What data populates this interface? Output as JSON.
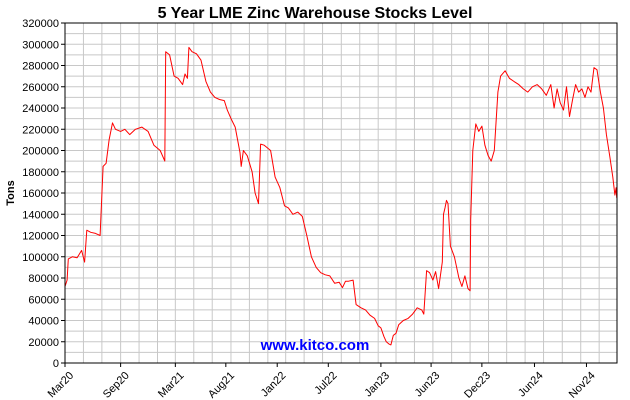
{
  "colors": {
    "series": "#ff0000",
    "grid": "#c8c8c8",
    "watermark": "#0000ff",
    "axis": "#000000"
  },
  "watermark": "www.kitco.com",
  "chart_data": {
    "type": "line",
    "title": "5 Year LME Zinc Warehouse Stocks Level",
    "ylabel": "Tons",
    "xlabel": "",
    "ylim": [
      0,
      320000
    ],
    "yticks": [
      0,
      20000,
      40000,
      60000,
      80000,
      100000,
      120000,
      140000,
      160000,
      180000,
      200000,
      220000,
      240000,
      260000,
      280000,
      300000,
      320000
    ],
    "xlim": [
      "2020-03-01",
      "2025-03-01"
    ],
    "xticks": [
      {
        "label": "Mar20",
        "date": "2020-03-01"
      },
      {
        "label": "Sep20",
        "date": "2020-09-01"
      },
      {
        "label": "Mar21",
        "date": "2021-03-01"
      },
      {
        "label": "Aug21",
        "date": "2021-08-15"
      },
      {
        "label": "Jan22",
        "date": "2022-02-01"
      },
      {
        "label": "Jul22",
        "date": "2022-07-20"
      },
      {
        "label": "Jan23",
        "date": "2023-01-10"
      },
      {
        "label": "Jun23",
        "date": "2023-06-25"
      },
      {
        "label": "Dec23",
        "date": "2023-12-10"
      },
      {
        "label": "Jun24",
        "date": "2024-06-01"
      },
      {
        "label": "Nov24",
        "date": "2024-11-20"
      }
    ],
    "grid": true,
    "legend": "none",
    "series": [
      {
        "points": [
          [
            "2020-03-01",
            72000
          ],
          [
            "2020-03-08",
            78000
          ],
          [
            "2020-03-12",
            98000
          ],
          [
            "2020-03-25",
            100000
          ],
          [
            "2020-04-10",
            99000
          ],
          [
            "2020-04-25",
            106000
          ],
          [
            "2020-05-05",
            95000
          ],
          [
            "2020-05-12",
            125000
          ],
          [
            "2020-05-25",
            123000
          ],
          [
            "2020-06-10",
            122000
          ],
          [
            "2020-06-25",
            120000
          ],
          [
            "2020-07-05",
            185000
          ],
          [
            "2020-07-15",
            188000
          ],
          [
            "2020-07-25",
            210000
          ],
          [
            "2020-08-05",
            226000
          ],
          [
            "2020-08-15",
            220000
          ],
          [
            "2020-09-01",
            218000
          ],
          [
            "2020-09-15",
            220000
          ],
          [
            "2020-10-01",
            215000
          ],
          [
            "2020-10-20",
            220000
          ],
          [
            "2020-11-10",
            222000
          ],
          [
            "2020-12-01",
            218000
          ],
          [
            "2020-12-20",
            205000
          ],
          [
            "2021-01-10",
            200000
          ],
          [
            "2021-01-25",
            190000
          ],
          [
            "2021-01-28",
            293000
          ],
          [
            "2021-02-10",
            290000
          ],
          [
            "2021-02-25",
            270000
          ],
          [
            "2021-03-10",
            268000
          ],
          [
            "2021-03-25",
            262000
          ],
          [
            "2021-04-02",
            272000
          ],
          [
            "2021-04-10",
            268000
          ],
          [
            "2021-04-15",
            297000
          ],
          [
            "2021-04-25",
            293000
          ],
          [
            "2021-05-10",
            291000
          ],
          [
            "2021-05-25",
            285000
          ],
          [
            "2021-06-10",
            265000
          ],
          [
            "2021-06-25",
            255000
          ],
          [
            "2021-07-10",
            250000
          ],
          [
            "2021-07-25",
            248000
          ],
          [
            "2021-08-10",
            247000
          ],
          [
            "2021-08-20",
            238000
          ],
          [
            "2021-09-01",
            230000
          ],
          [
            "2021-09-15",
            222000
          ],
          [
            "2021-10-01",
            198000
          ],
          [
            "2021-10-05",
            185000
          ],
          [
            "2021-10-12",
            200000
          ],
          [
            "2021-10-25",
            195000
          ],
          [
            "2021-11-10",
            180000
          ],
          [
            "2021-11-20",
            160000
          ],
          [
            "2021-12-01",
            150000
          ],
          [
            "2021-12-08",
            206000
          ],
          [
            "2021-12-20",
            205000
          ],
          [
            "2022-01-10",
            200000
          ],
          [
            "2022-01-25",
            175000
          ],
          [
            "2022-02-10",
            165000
          ],
          [
            "2022-02-25",
            148000
          ],
          [
            "2022-03-10",
            146000
          ],
          [
            "2022-03-25",
            140000
          ],
          [
            "2022-04-10",
            142000
          ],
          [
            "2022-04-25",
            138000
          ],
          [
            "2022-05-10",
            120000
          ],
          [
            "2022-05-25",
            100000
          ],
          [
            "2022-06-10",
            90000
          ],
          [
            "2022-06-25",
            85000
          ],
          [
            "2022-07-10",
            83000
          ],
          [
            "2022-07-25",
            82000
          ],
          [
            "2022-08-10",
            75000
          ],
          [
            "2022-08-25",
            76000
          ],
          [
            "2022-09-05",
            71000
          ],
          [
            "2022-09-15",
            77000
          ],
          [
            "2022-09-25",
            77000
          ],
          [
            "2022-10-10",
            78000
          ],
          [
            "2022-10-20",
            55000
          ],
          [
            "2022-11-05",
            52000
          ],
          [
            "2022-11-20",
            50000
          ],
          [
            "2022-12-05",
            45000
          ],
          [
            "2022-12-20",
            42000
          ],
          [
            "2023-01-01",
            35000
          ],
          [
            "2023-01-10",
            33000
          ],
          [
            "2023-01-20",
            25000
          ],
          [
            "2023-01-28",
            20000
          ],
          [
            "2023-02-05",
            18000
          ],
          [
            "2023-02-12",
            17000
          ],
          [
            "2023-02-20",
            26000
          ],
          [
            "2023-03-01",
            28000
          ],
          [
            "2023-03-10",
            36000
          ],
          [
            "2023-03-25",
            40000
          ],
          [
            "2023-04-10",
            42000
          ],
          [
            "2023-04-25",
            46000
          ],
          [
            "2023-05-10",
            52000
          ],
          [
            "2023-05-25",
            50000
          ],
          [
            "2023-06-01",
            46000
          ],
          [
            "2023-06-10",
            87000
          ],
          [
            "2023-06-20",
            85000
          ],
          [
            "2023-07-01",
            78000
          ],
          [
            "2023-07-10",
            86000
          ],
          [
            "2023-07-20",
            70000
          ],
          [
            "2023-08-01",
            95000
          ],
          [
            "2023-08-05",
            140000
          ],
          [
            "2023-08-10",
            146000
          ],
          [
            "2023-08-15",
            153000
          ],
          [
            "2023-08-20",
            150000
          ],
          [
            "2023-08-28",
            110000
          ],
          [
            "2023-09-10",
            100000
          ],
          [
            "2023-09-25",
            80000
          ],
          [
            "2023-10-05",
            72000
          ],
          [
            "2023-10-15",
            82000
          ],
          [
            "2023-10-25",
            70000
          ],
          [
            "2023-11-01",
            68000
          ],
          [
            "2023-11-03",
            135000
          ],
          [
            "2023-11-10",
            200000
          ],
          [
            "2023-11-20",
            225000
          ],
          [
            "2023-11-30",
            218000
          ],
          [
            "2023-12-10",
            223000
          ],
          [
            "2023-12-20",
            205000
          ],
          [
            "2023-12-31",
            195000
          ],
          [
            "2024-01-10",
            190000
          ],
          [
            "2024-01-20",
            200000
          ],
          [
            "2024-02-01",
            255000
          ],
          [
            "2024-02-10",
            270000
          ],
          [
            "2024-02-25",
            275000
          ],
          [
            "2024-03-10",
            268000
          ],
          [
            "2024-03-25",
            265000
          ],
          [
            "2024-04-10",
            262000
          ],
          [
            "2024-04-25",
            258000
          ],
          [
            "2024-05-10",
            255000
          ],
          [
            "2024-05-25",
            260000
          ],
          [
            "2024-06-10",
            262000
          ],
          [
            "2024-06-25",
            258000
          ],
          [
            "2024-07-10",
            252000
          ],
          [
            "2024-07-25",
            262000
          ],
          [
            "2024-08-05",
            240000
          ],
          [
            "2024-08-15",
            258000
          ],
          [
            "2024-08-25",
            245000
          ],
          [
            "2024-09-05",
            238000
          ],
          [
            "2024-09-15",
            260000
          ],
          [
            "2024-09-25",
            232000
          ],
          [
            "2024-10-05",
            248000
          ],
          [
            "2024-10-15",
            262000
          ],
          [
            "2024-10-25",
            255000
          ],
          [
            "2024-11-05",
            258000
          ],
          [
            "2024-11-15",
            250000
          ],
          [
            "2024-11-25",
            260000
          ],
          [
            "2024-12-05",
            255000
          ],
          [
            "2024-12-15",
            278000
          ],
          [
            "2024-12-25",
            276000
          ],
          [
            "2025-01-05",
            255000
          ],
          [
            "2025-01-15",
            240000
          ],
          [
            "2025-01-25",
            215000
          ],
          [
            "2025-02-05",
            195000
          ],
          [
            "2025-02-15",
            175000
          ],
          [
            "2025-02-22",
            158000
          ],
          [
            "2025-02-26",
            165000
          ],
          [
            "2025-02-28",
            156000
          ],
          [
            "2025-03-01",
            155000
          ]
        ]
      }
    ]
  }
}
